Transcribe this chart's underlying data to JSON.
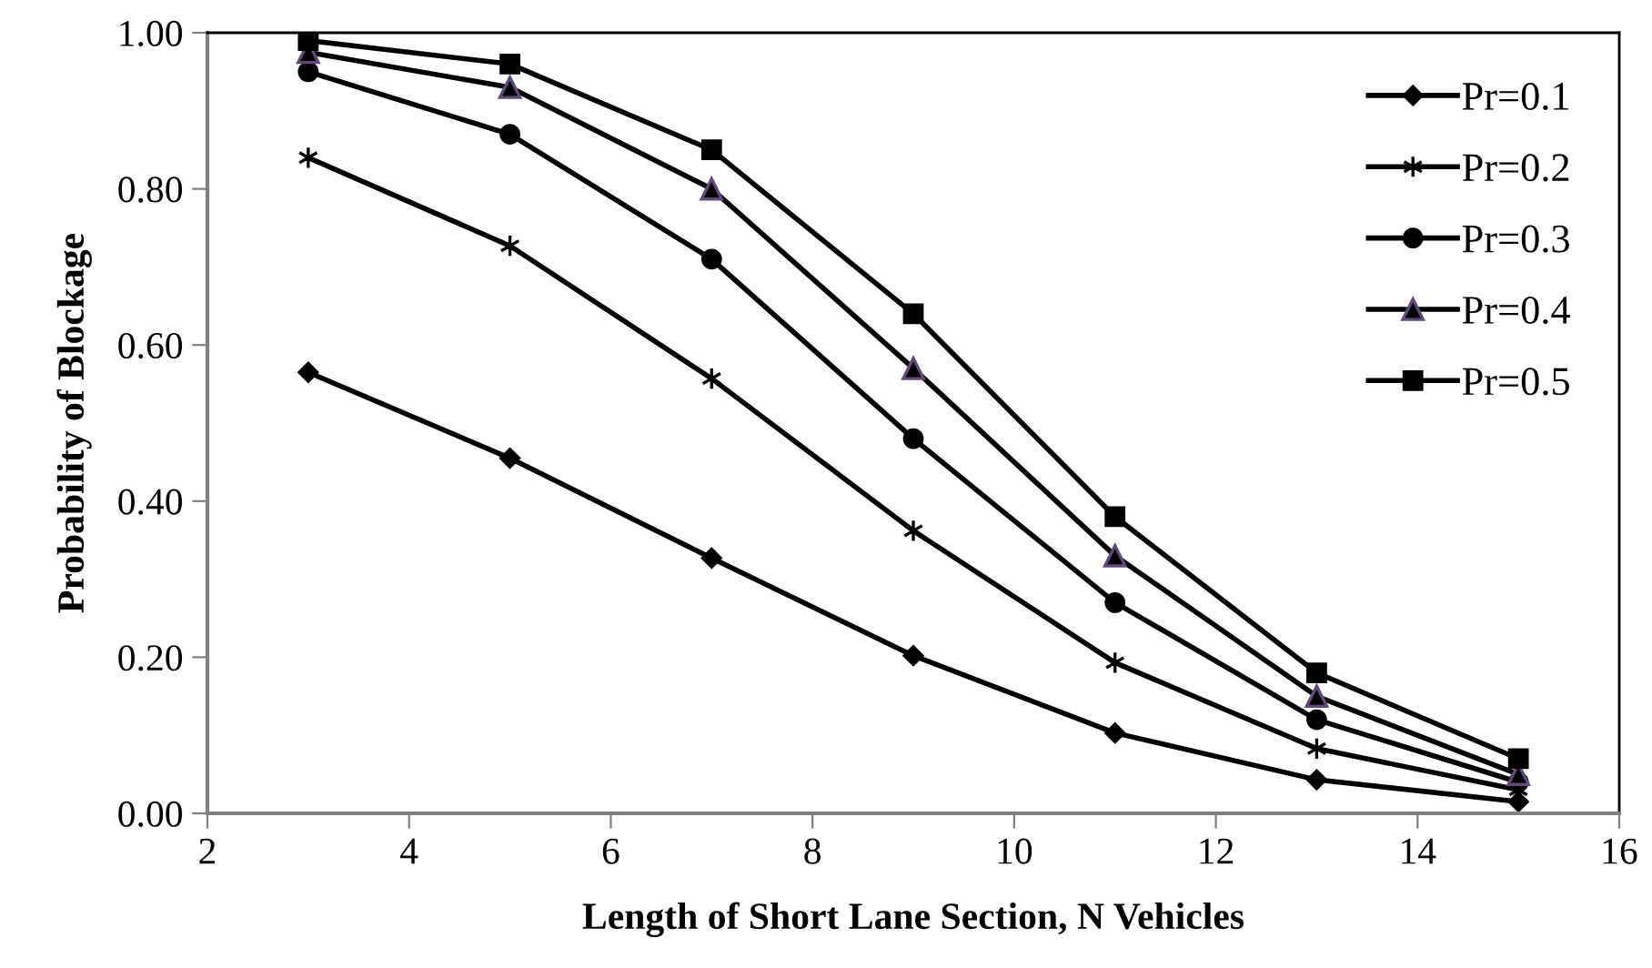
{
  "chart_data": {
    "type": "line",
    "xlabel": "Length of Short Lane Section, N Vehicles",
    "ylabel": "Probability of Blockage",
    "x": [
      3,
      5,
      7,
      9,
      11,
      13,
      15
    ],
    "series": [
      {
        "name": "Pr=0.1",
        "color": "#000000",
        "marker": "diamond",
        "values": [
          0.565,
          0.455,
          0.327,
          0.202,
          0.103,
          0.043,
          0.015
        ]
      },
      {
        "name": "Pr=0.2",
        "color": "#000000",
        "marker": "cross",
        "values": [
          0.84,
          0.727,
          0.557,
          0.362,
          0.193,
          0.083,
          0.03
        ]
      },
      {
        "name": "Pr=0.3",
        "color": "#000000",
        "marker": "circle",
        "values": [
          0.95,
          0.87,
          0.71,
          0.48,
          0.27,
          0.12,
          0.04
        ]
      },
      {
        "name": "Pr=0.4",
        "color": "#000000",
        "marker": "triangle",
        "values": [
          0.975,
          0.93,
          0.8,
          0.57,
          0.33,
          0.15,
          0.05
        ]
      },
      {
        "name": "Pr=0.5",
        "color": "#000000",
        "marker": "square",
        "values": [
          0.99,
          0.96,
          0.85,
          0.64,
          0.38,
          0.18,
          0.07
        ]
      }
    ],
    "xlim": [
      2,
      16
    ],
    "xticks": [
      2,
      4,
      6,
      8,
      10,
      12,
      14,
      16
    ],
    "ylim": [
      0,
      1
    ],
    "yticks": [
      {
        "value": 0,
        "label": "0.00"
      },
      {
        "value": 0.2,
        "label": "0.20"
      },
      {
        "value": 0.4,
        "label": "0.40"
      },
      {
        "value": 0.6,
        "label": "0.60"
      },
      {
        "value": 0.8,
        "label": "0.80"
      },
      {
        "value": 1.0,
        "label": "1.00"
      }
    ],
    "grid": false,
    "legend": "top right",
    "line_style": "solid"
  }
}
